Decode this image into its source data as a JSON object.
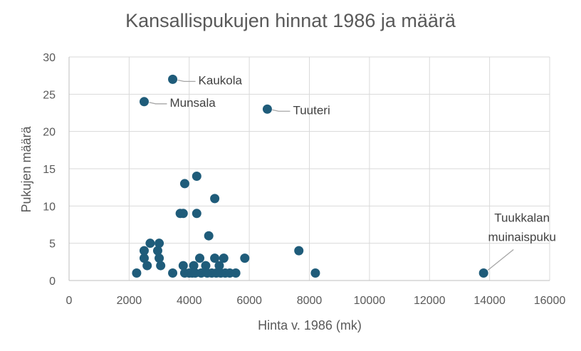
{
  "chart_data": {
    "type": "scatter",
    "title": "Kansallispukujen hinnat 1986 ja määrä",
    "xlabel": "Hinta v. 1986 (mk)",
    "ylabel": "Pukujen määrä",
    "xlim": [
      0,
      16000
    ],
    "ylim": [
      0,
      30
    ],
    "xticks": [
      0,
      2000,
      4000,
      6000,
      8000,
      10000,
      12000,
      14000,
      16000
    ],
    "yticks": [
      0,
      5,
      10,
      15,
      20,
      25,
      30
    ],
    "grid": true,
    "legend": "none",
    "marker_color": "#1f5c7a",
    "gridline_color": "#d9d9d9",
    "points": [
      {
        "x": 2250,
        "y": 1
      },
      {
        "x": 2500,
        "y": 3
      },
      {
        "x": 2500,
        "y": 4
      },
      {
        "x": 2500,
        "y": 24
      },
      {
        "x": 2600,
        "y": 2
      },
      {
        "x": 2700,
        "y": 5
      },
      {
        "x": 2950,
        "y": 4
      },
      {
        "x": 3000,
        "y": 3
      },
      {
        "x": 3000,
        "y": 5
      },
      {
        "x": 3050,
        "y": 2
      },
      {
        "x": 3450,
        "y": 1
      },
      {
        "x": 3450,
        "y": 27
      },
      {
        "x": 3700,
        "y": 9
      },
      {
        "x": 3800,
        "y": 9
      },
      {
        "x": 3800,
        "y": 2
      },
      {
        "x": 3850,
        "y": 13
      },
      {
        "x": 3850,
        "y": 1
      },
      {
        "x": 4000,
        "y": 1
      },
      {
        "x": 4100,
        "y": 1
      },
      {
        "x": 4150,
        "y": 2
      },
      {
        "x": 4200,
        "y": 1
      },
      {
        "x": 4250,
        "y": 14
      },
      {
        "x": 4250,
        "y": 9
      },
      {
        "x": 4350,
        "y": 3
      },
      {
        "x": 4400,
        "y": 1
      },
      {
        "x": 4550,
        "y": 2
      },
      {
        "x": 4600,
        "y": 1
      },
      {
        "x": 4650,
        "y": 6
      },
      {
        "x": 4750,
        "y": 1
      },
      {
        "x": 4850,
        "y": 11
      },
      {
        "x": 4850,
        "y": 3
      },
      {
        "x": 4900,
        "y": 1
      },
      {
        "x": 5000,
        "y": 2
      },
      {
        "x": 5050,
        "y": 1
      },
      {
        "x": 5150,
        "y": 3
      },
      {
        "x": 5200,
        "y": 1
      },
      {
        "x": 5350,
        "y": 1
      },
      {
        "x": 5550,
        "y": 1
      },
      {
        "x": 5850,
        "y": 3
      },
      {
        "x": 6600,
        "y": 23
      },
      {
        "x": 7650,
        "y": 4
      },
      {
        "x": 8200,
        "y": 1
      },
      {
        "x": 13800,
        "y": 1
      }
    ],
    "annotations": [
      {
        "label": [
          "Kaukola"
        ],
        "x": 3450,
        "y": 27,
        "side": "right"
      },
      {
        "label": [
          "Munsala"
        ],
        "x": 2500,
        "y": 24,
        "side": "right"
      },
      {
        "label": [
          "Tuuteri"
        ],
        "x": 6600,
        "y": 23,
        "side": "right"
      },
      {
        "label": [
          "Tuukkalan",
          "muinaispuku"
        ],
        "x": 13800,
        "y": 1,
        "side": "above-right"
      }
    ]
  }
}
